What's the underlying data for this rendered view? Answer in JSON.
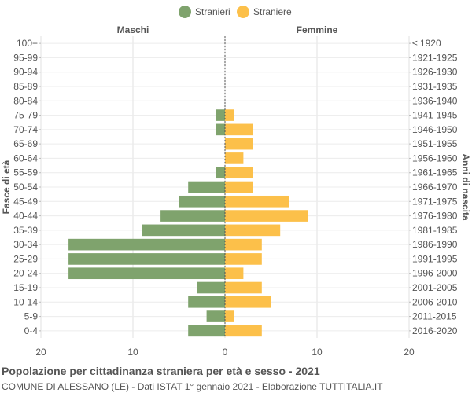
{
  "chart_data": {
    "type": "bar",
    "orientation": "horizontal-population-pyramid",
    "title": "Popolazione per cittadinanza straniera per età e sesso - 2021",
    "subtitle": "COMUNE DI ALESSANO (LE) - Dati ISTAT 1° gennaio 2021 - Elaborazione TUTTITALIA.IT",
    "left_header": "Maschi",
    "right_header": "Femmine",
    "ylabel_left": "Fasce di età",
    "ylabel_right": "Anni di nascita",
    "x_ticks": [
      "20",
      "10",
      "0",
      "10",
      "20"
    ],
    "xlim": [
      -20,
      20
    ],
    "grid": true,
    "legend_position": "top-center",
    "categories": [
      "100+",
      "95-99",
      "90-94",
      "85-89",
      "80-84",
      "75-79",
      "70-74",
      "65-69",
      "60-64",
      "55-59",
      "50-54",
      "45-49",
      "40-44",
      "35-39",
      "30-34",
      "25-29",
      "20-24",
      "15-19",
      "10-14",
      "5-9",
      "0-4"
    ],
    "birth_years": [
      "≤ 1920",
      "1921-1925",
      "1926-1930",
      "1931-1935",
      "1936-1940",
      "1941-1945",
      "1946-1950",
      "1951-1955",
      "1956-1960",
      "1961-1965",
      "1966-1970",
      "1971-1975",
      "1976-1980",
      "1981-1985",
      "1986-1990",
      "1991-1995",
      "1996-2000",
      "2001-2005",
      "2006-2010",
      "2011-2015",
      "2016-2020"
    ],
    "series": [
      {
        "name": "Stranieri",
        "color": "#7fa36d",
        "values": [
          0,
          0,
          0,
          0,
          0,
          1,
          1,
          0,
          0,
          1,
          4,
          5,
          7,
          9,
          17,
          17,
          17,
          3,
          4,
          2,
          4
        ]
      },
      {
        "name": "Straniere",
        "color": "#fcc04a",
        "values": [
          0,
          0,
          0,
          0,
          0,
          1,
          3,
          3,
          2,
          3,
          3,
          7,
          9,
          6,
          4,
          4,
          2,
          4,
          5,
          1,
          4
        ]
      }
    ]
  }
}
